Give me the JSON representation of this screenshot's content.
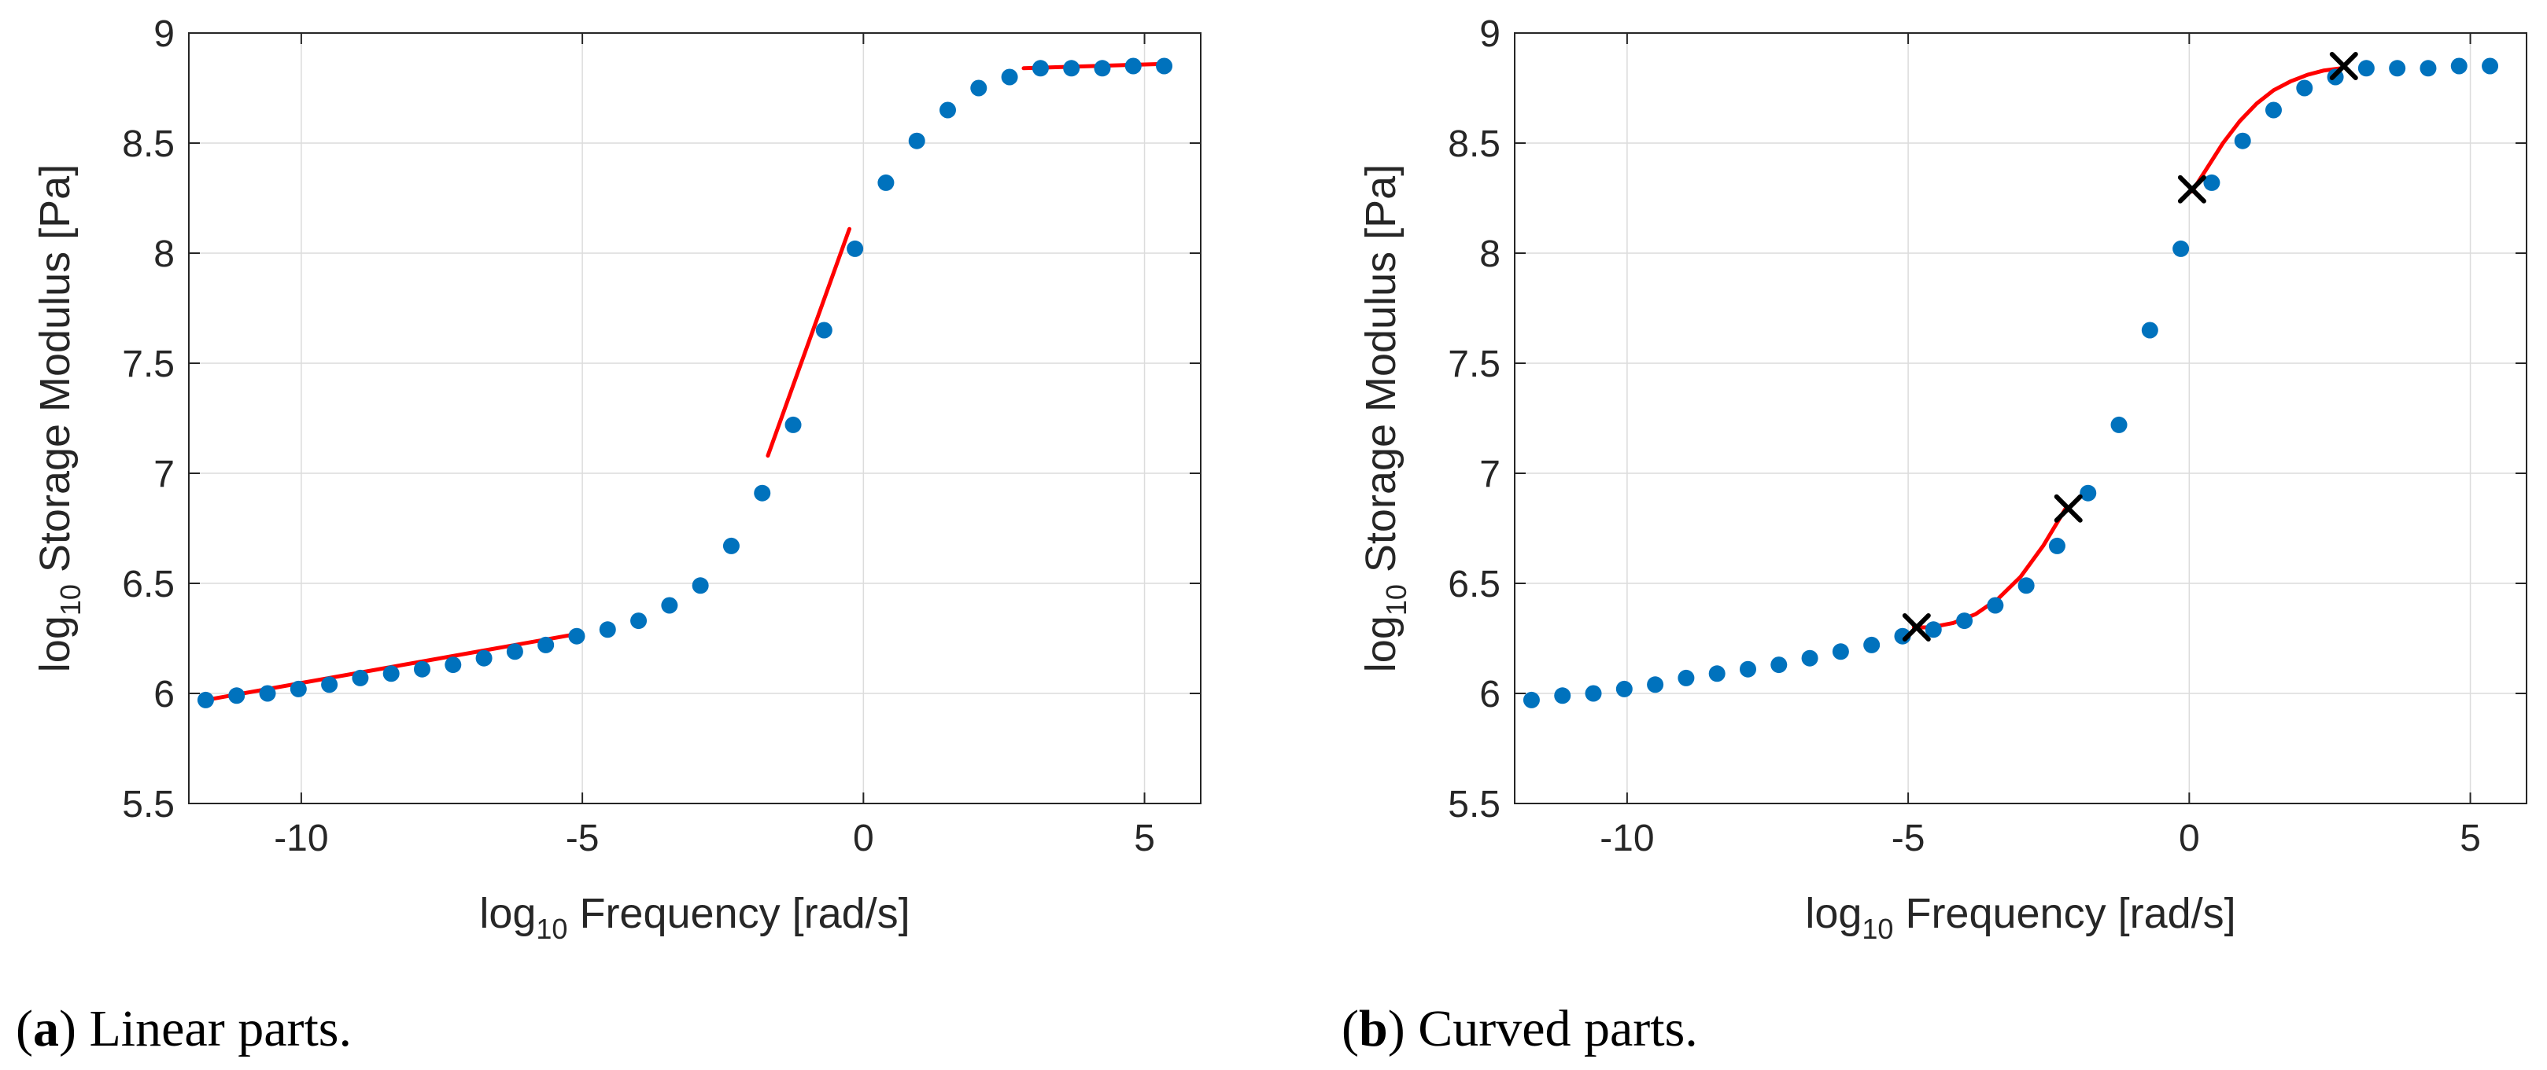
{
  "chart_data": [
    {
      "type": "scatter",
      "caption_letter": "a",
      "caption_text": "Linear parts.",
      "xlabel_prefix": "log",
      "xlabel_sub": "10",
      "xlabel_main": " Frequency [rad/s]",
      "ylabel_prefix": "log",
      "ylabel_sub": "10",
      "ylabel_main": " Storage Modulus [Pa]",
      "xlim": [
        -12,
        6
      ],
      "ylim": [
        5.5,
        9
      ],
      "xticks": [
        -10,
        -5,
        0,
        5
      ],
      "xtick_labels": [
        "-10",
        "-5",
        "0",
        "5"
      ],
      "yticks": [
        5.5,
        6,
        6.5,
        7,
        7.5,
        8,
        8.5,
        9
      ],
      "ytick_labels": [
        "5.5",
        "6",
        "6.5",
        "7",
        "7.5",
        "8",
        "8.5",
        "9"
      ],
      "grid": true,
      "marker_color": "#0072BD",
      "fit_color": "#FF0000",
      "points": {
        "x": [
          -11.7,
          -11.15,
          -10.6,
          -10.05,
          -9.5,
          -8.95,
          -8.4,
          -7.85,
          -7.3,
          -6.75,
          -6.2,
          -5.65,
          -5.1,
          -4.55,
          -4.0,
          -3.45,
          -2.9,
          -2.35,
          -1.8,
          -1.25,
          -0.7,
          -0.15,
          0.4,
          0.95,
          1.5,
          2.05,
          2.6,
          3.15,
          3.7,
          4.25,
          4.8,
          5.35
        ],
        "y": [
          5.97,
          5.99,
          6.0,
          6.02,
          6.04,
          6.07,
          6.09,
          6.11,
          6.13,
          6.16,
          6.19,
          6.22,
          6.26,
          6.29,
          6.33,
          6.4,
          6.49,
          6.67,
          6.91,
          7.22,
          7.65,
          8.02,
          8.32,
          8.51,
          8.65,
          8.75,
          8.8,
          8.84,
          8.84,
          8.84,
          8.85,
          8.85
        ],
        "last_x": 5.35,
        "last_y": 8.86
      },
      "fits": [
        {
          "x": [
            -11.7,
            -5.1
          ],
          "y": [
            5.97,
            6.27
          ]
        },
        {
          "x": [
            -1.7,
            -0.25
          ],
          "y": [
            7.08,
            8.11
          ]
        },
        {
          "x": [
            2.85,
            5.35
          ],
          "y": [
            8.84,
            8.86
          ]
        }
      ],
      "markers": []
    },
    {
      "type": "scatter",
      "caption_letter": "b",
      "caption_text": "Curved parts.",
      "xlabel_prefix": "log",
      "xlabel_sub": "10",
      "xlabel_main": " Frequency [rad/s]",
      "ylabel_prefix": "log",
      "ylabel_sub": "10",
      "ylabel_main": " Storage Modulus [Pa]",
      "xlim": [
        -12,
        6
      ],
      "ylim": [
        5.5,
        9
      ],
      "xticks": [
        -10,
        -5,
        0,
        5
      ],
      "xtick_labels": [
        "-10",
        "-5",
        "0",
        "5"
      ],
      "yticks": [
        5.5,
        6,
        6.5,
        7,
        7.5,
        8,
        8.5,
        9
      ],
      "ytick_labels": [
        "5.5",
        "6",
        "6.5",
        "7",
        "7.5",
        "8",
        "8.5",
        "9"
      ],
      "grid": true,
      "marker_color": "#0072BD",
      "fit_color": "#FF0000",
      "points": {
        "x": [
          -11.7,
          -11.15,
          -10.6,
          -10.05,
          -9.5,
          -8.95,
          -8.4,
          -7.85,
          -7.3,
          -6.75,
          -6.2,
          -5.65,
          -5.1,
          -4.55,
          -4.0,
          -3.45,
          -2.9,
          -2.35,
          -1.8,
          -1.25,
          -0.7,
          -0.15,
          0.4,
          0.95,
          1.5,
          2.05,
          2.6,
          3.15,
          3.7,
          4.25,
          4.8,
          5.35
        ],
        "y": [
          5.97,
          5.99,
          6.0,
          6.02,
          6.04,
          6.07,
          6.09,
          6.11,
          6.13,
          6.16,
          6.19,
          6.22,
          6.26,
          6.29,
          6.33,
          6.4,
          6.49,
          6.67,
          6.91,
          7.22,
          7.65,
          8.02,
          8.32,
          8.51,
          8.65,
          8.75,
          8.8,
          8.84,
          8.84,
          8.84,
          8.85,
          8.85
        ],
        "last_x": 5.35,
        "last_y": 8.86
      },
      "fits": [
        {
          "x": [
            -4.9,
            -4.6,
            -4.2,
            -3.8,
            -3.4,
            -3.0,
            -2.6,
            -2.2
          ],
          "y": [
            6.3,
            6.3,
            6.32,
            6.36,
            6.43,
            6.53,
            6.67,
            6.84
          ]
        },
        {
          "x": [
            0.05,
            0.3,
            0.6,
            0.9,
            1.2,
            1.5,
            1.8,
            2.1,
            2.4,
            2.7
          ],
          "y": [
            8.28,
            8.38,
            8.5,
            8.6,
            8.68,
            8.74,
            8.78,
            8.81,
            8.83,
            8.84
          ]
        }
      ],
      "markers": [
        {
          "x": -4.85,
          "y": 6.3
        },
        {
          "x": -2.15,
          "y": 6.84
        },
        {
          "x": 0.05,
          "y": 8.29
        },
        {
          "x": 2.75,
          "y": 8.85
        }
      ]
    }
  ]
}
